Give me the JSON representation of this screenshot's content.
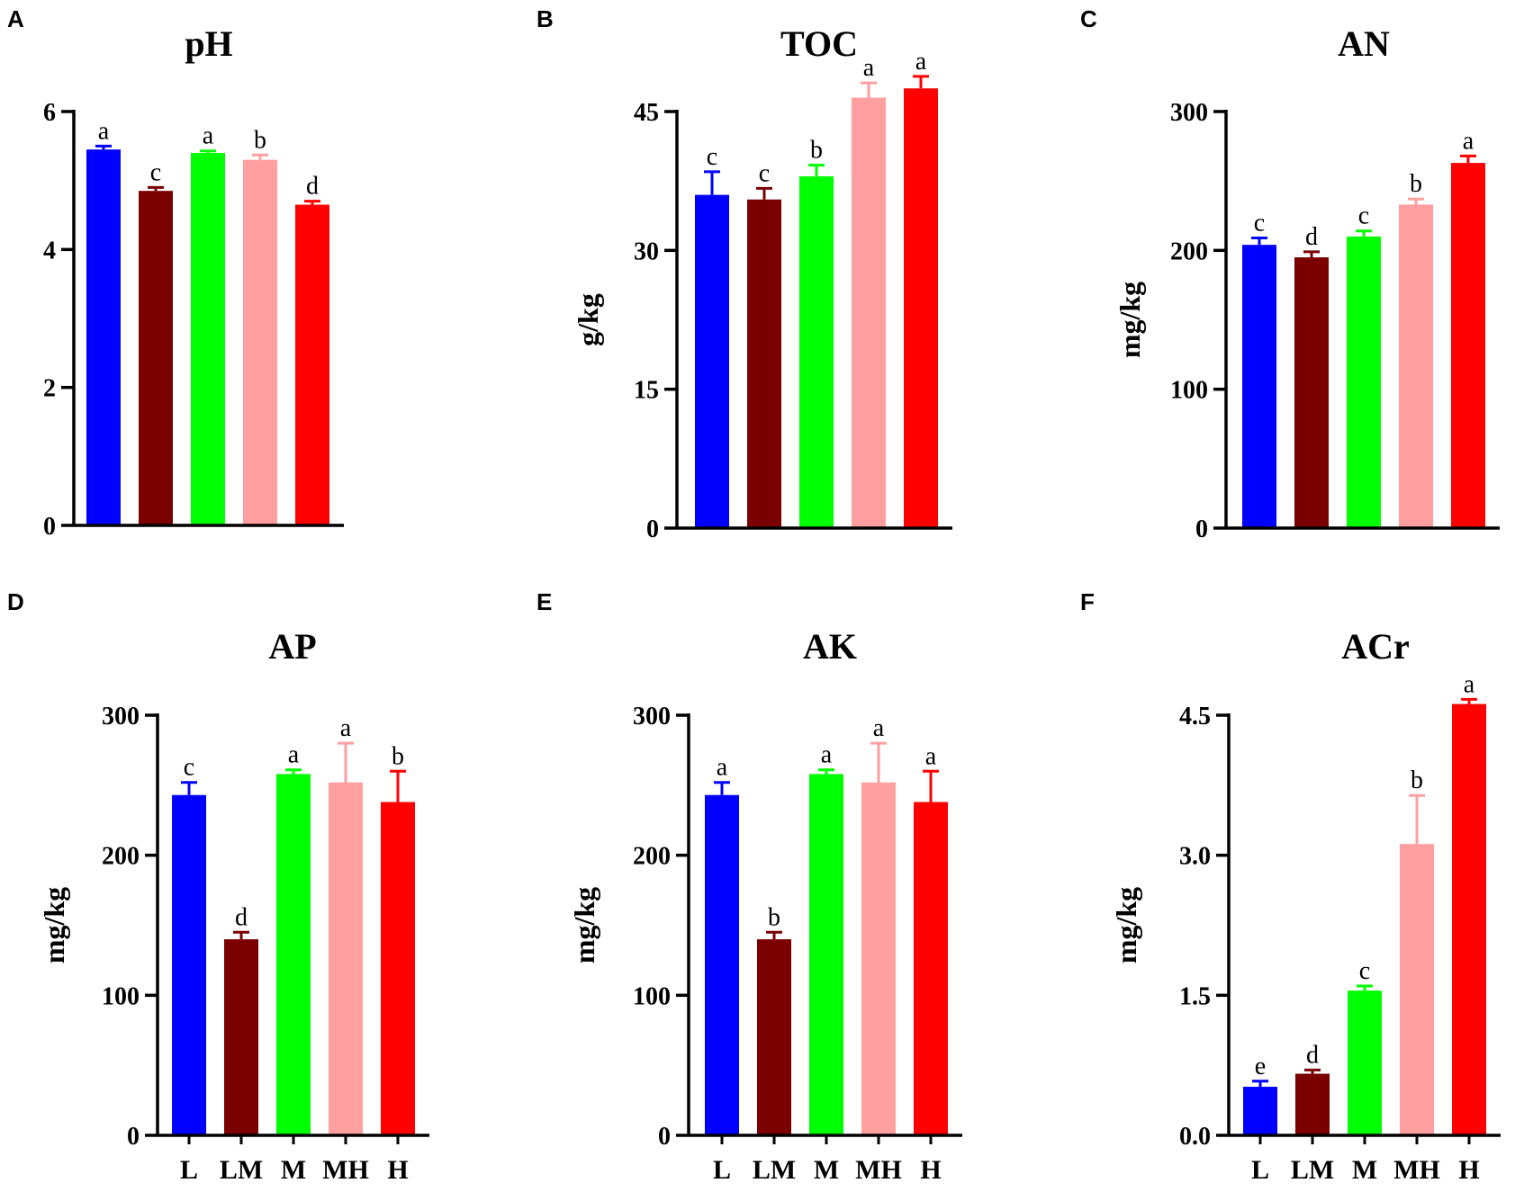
{
  "colors": {
    "L": "#0000ff",
    "LM": "#7b0000",
    "M": "#00ff00",
    "MH": "#ff9f9f",
    "H": "#ff0000"
  },
  "categories": [
    "L",
    "LM",
    "M",
    "MH",
    "H"
  ],
  "chart_data": [
    {
      "type": "bar",
      "panel": "A",
      "title": "pH",
      "ylabel": "",
      "ylim": [
        0,
        6
      ],
      "yticks": [
        0,
        2,
        4,
        6
      ],
      "ytick_labels": [
        "0",
        "2",
        "4",
        "6"
      ],
      "categories": [
        "L",
        "LM",
        "M",
        "MH",
        "H"
      ],
      "show_categories": false,
      "values": [
        5.45,
        4.85,
        5.4,
        5.3,
        4.65
      ],
      "errors": [
        0.05,
        0.05,
        0.03,
        0.07,
        0.05
      ],
      "letters": [
        "a",
        "c",
        "a",
        "b",
        "d"
      ]
    },
    {
      "type": "bar",
      "panel": "B",
      "title": "TOC",
      "ylabel": "g/kg",
      "ylim": [
        0,
        50
      ],
      "yticks": [
        0,
        15,
        30,
        45
      ],
      "ytick_labels": [
        "0",
        "15",
        "30",
        "45"
      ],
      "categories": [
        "L",
        "LM",
        "M",
        "MH",
        "H"
      ],
      "show_categories": false,
      "values": [
        36,
        35.5,
        38,
        46.5,
        47.5
      ],
      "errors": [
        2.5,
        1.2,
        1.2,
        1.6,
        1.3
      ],
      "letters": [
        "c",
        "c",
        "b",
        "a",
        "a"
      ]
    },
    {
      "type": "bar",
      "panel": "C",
      "title": "AN",
      "ylabel": "mg/kg",
      "ylim": [
        0,
        300
      ],
      "yticks": [
        0,
        100,
        200,
        300
      ],
      "ytick_labels": [
        "0",
        "100",
        "200",
        "300"
      ],
      "categories": [
        "L",
        "LM",
        "M",
        "MH",
        "H"
      ],
      "show_categories": false,
      "values": [
        204,
        195,
        210,
        233,
        263
      ],
      "errors": [
        5,
        4,
        4,
        4,
        5
      ],
      "letters": [
        "c",
        "d",
        "c",
        "b",
        "a"
      ]
    },
    {
      "type": "bar",
      "panel": "D",
      "title": "AP",
      "ylabel": "mg/kg",
      "ylim": [
        0,
        300
      ],
      "yticks": [
        0,
        100,
        200,
        300
      ],
      "ytick_labels": [
        "0",
        "100",
        "200",
        "300"
      ],
      "categories": [
        "L",
        "LM",
        "M",
        "MH",
        "H"
      ],
      "show_categories": true,
      "values": [
        243,
        140,
        258,
        252,
        238
      ],
      "errors": [
        9,
        5,
        3,
        28,
        22
      ],
      "letters": [
        "c",
        "d",
        "a",
        "a",
        "b"
      ]
    },
    {
      "type": "bar",
      "panel": "E",
      "title": "AK",
      "ylabel": "mg/kg",
      "ylim": [
        0,
        300
      ],
      "yticks": [
        0,
        100,
        200,
        300
      ],
      "ytick_labels": [
        "0",
        "100",
        "200",
        "300"
      ],
      "categories": [
        "L",
        "LM",
        "M",
        "MH",
        "H"
      ],
      "show_categories": true,
      "values": [
        243,
        140,
        258,
        252,
        238
      ],
      "errors": [
        9,
        5,
        3,
        28,
        22
      ],
      "letters": [
        "a",
        "b",
        "a",
        "a",
        "a"
      ]
    },
    {
      "type": "bar",
      "panel": "F",
      "title": "ACr",
      "ylabel": "mg/kg",
      "ylim": [
        0,
        5
      ],
      "yticks": [
        0,
        1.5,
        3,
        4.5
      ],
      "ytick_labels": [
        "0.0",
        "1.5",
        "3.0",
        "4.5"
      ],
      "categories": [
        "L",
        "LM",
        "M",
        "MH",
        "H"
      ],
      "show_categories": true,
      "values": [
        0.52,
        0.66,
        1.55,
        3.12,
        4.62
      ],
      "errors": [
        0.06,
        0.04,
        0.05,
        0.52,
        0.05
      ],
      "letters": [
        "e",
        "d",
        "c",
        "b",
        "a"
      ]
    }
  ]
}
